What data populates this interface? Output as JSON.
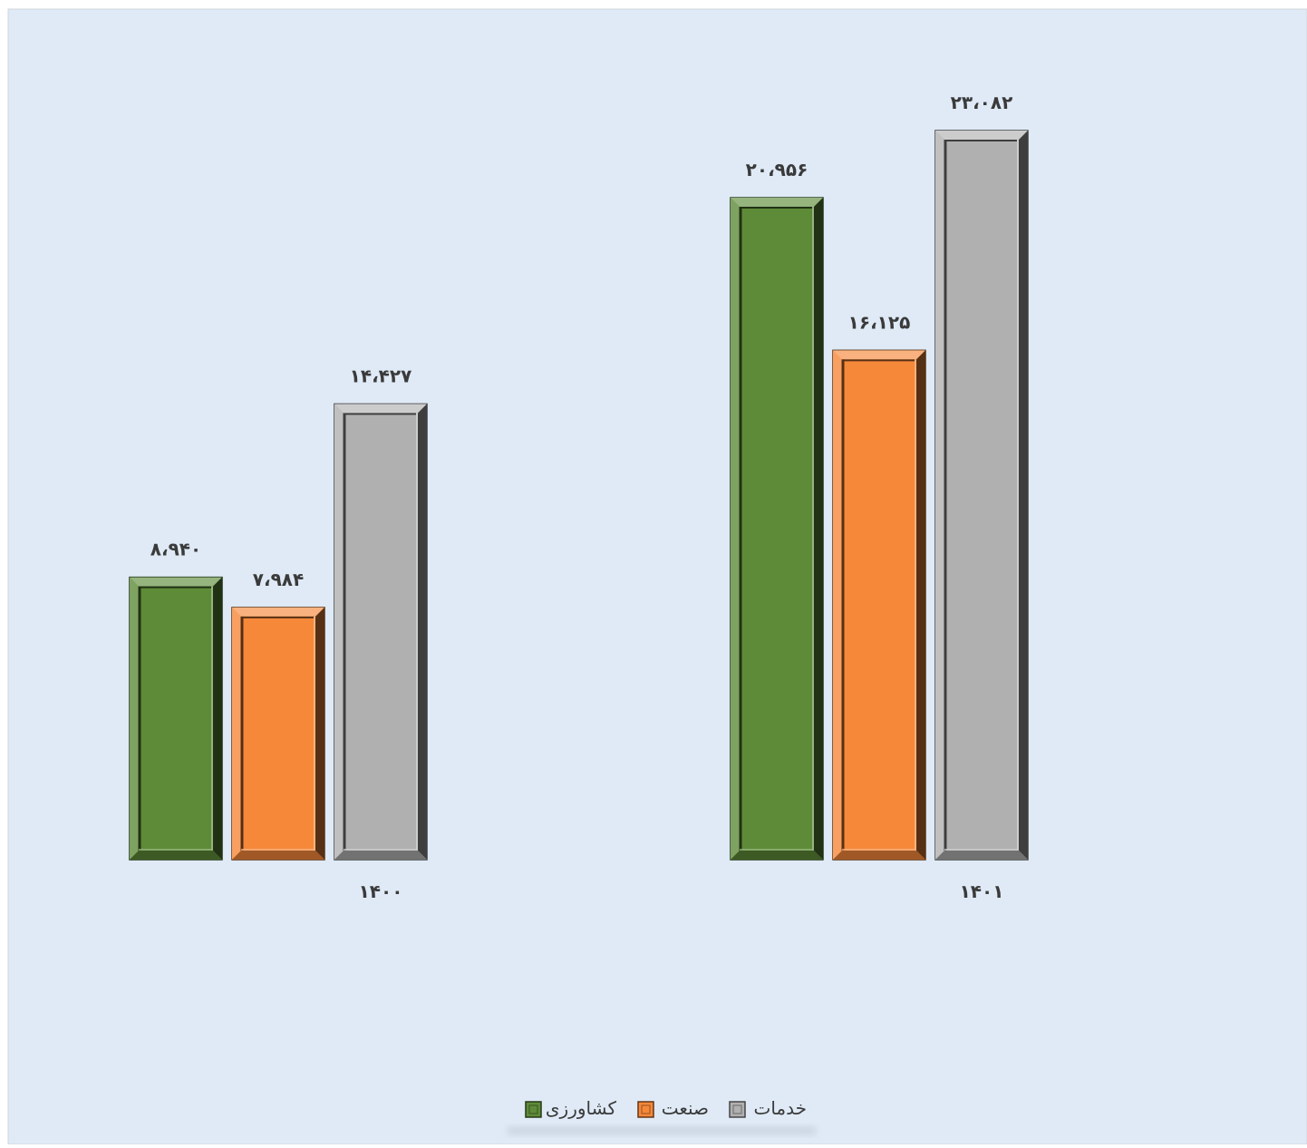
{
  "chart_data": {
    "type": "bar",
    "title": "",
    "xlabel": "",
    "ylabel": "",
    "ylim": [
      0,
      25
    ],
    "grid": false,
    "legend_position": "bottom",
    "categories": [
      "۱۴۰۰",
      "۱۴۰۱"
    ],
    "series": [
      {
        "name": "کشاورزی",
        "color": "#5E8B38",
        "values": [
          8.94,
          20.956
        ],
        "labels": [
          "۸،۹۴۰",
          "۲۰،۹۵۶"
        ]
      },
      {
        "name": "صنعت",
        "color": "#F6883A",
        "values": [
          7.984,
          16.125
        ],
        "labels": [
          "۷،۹۸۴",
          "۱۶،۱۲۵"
        ]
      },
      {
        "name": "خدمات",
        "color": "#B0B0B0",
        "values": [
          14.427,
          23.082
        ],
        "labels": [
          "۱۴،۴۲۷",
          "۲۳،۰۸۲"
        ]
      }
    ]
  }
}
